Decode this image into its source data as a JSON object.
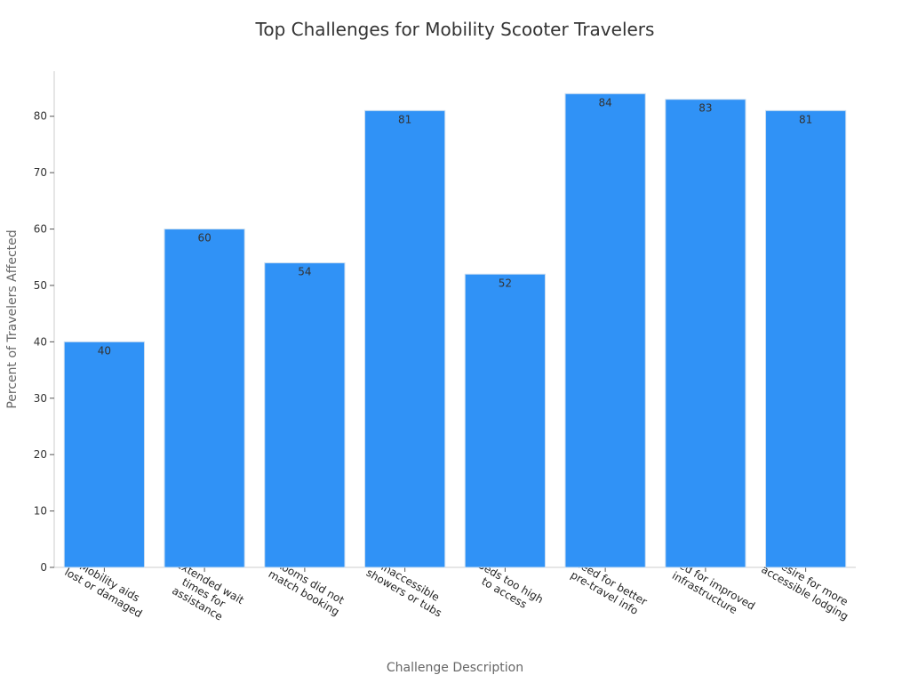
{
  "chart_data": {
    "type": "bar",
    "title": "Top Challenges for Mobility Scooter Travelers",
    "xlabel": "Challenge Description",
    "ylabel": "Percent of Travelers Affected",
    "categories": [
      [
        "Mobility aids",
        "lost or damaged"
      ],
      [
        "Extended wait",
        "times for",
        "assistance"
      ],
      [
        "Rooms did not",
        "match booking"
      ],
      [
        "Inaccessible",
        "showers or tubs"
      ],
      [
        "Beds too high",
        "to access"
      ],
      [
        "Need for better",
        "pre-travel info"
      ],
      [
        "Need for improved",
        "infrastructure"
      ],
      [
        "Desire for more",
        "accessible lodging"
      ]
    ],
    "values": [
      40,
      60,
      54,
      81,
      52,
      84,
      83,
      81
    ],
    "ylim": [
      0,
      88
    ],
    "yticks": [
      0,
      10,
      20,
      30,
      40,
      50,
      60,
      70,
      80
    ],
    "grid": false,
    "legend": "none",
    "colors": {
      "bar": "#3092f6",
      "bar_edge": "#c8dcf0"
    }
  }
}
